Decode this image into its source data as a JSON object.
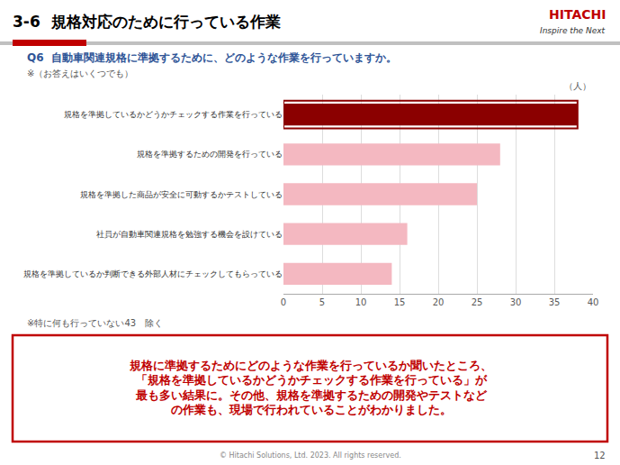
{
  "chart_data": {
    "type": "bar",
    "orientation": "horizontal",
    "title": "3-6  規格対応のために行っている作業",
    "xlabel": "（人）",
    "categories": [
      "規格を準拠しているかどうかチェックする作業を行っている",
      "規格を準拠するための開発を行っている",
      "規格を準拠した商品が安全に可動するかテストしている",
      "社員が自動車関連規格を勉強する機会を設けている",
      "規格を準拠しているか判断できる外部人材にチェックしてもらっている"
    ],
    "values": [
      38,
      28,
      25,
      16,
      14
    ],
    "colors": [
      "#8B0000",
      "#F4B8C1",
      "#F4B8C1",
      "#F4B8C1",
      "#F4B8C1"
    ],
    "xlim": [
      0,
      40
    ],
    "xticks": [
      0,
      5,
      10,
      15,
      20,
      25,
      30,
      35,
      40
    ],
    "grid": true,
    "annotations": [
      "Q6  自動車関連規格に準拠するために、どのような作業を行っていますか。",
      "※（お答えはいくつでも）",
      "※特に何も行っていない43　除く",
      "規格に準拠するためにどのような作業を行っているか聞いたところ、\n「規格を準拠しているかどうかチェックする作業を行っている」が\n最も多い結果に。その他、規格を準拠するための開発やテストなど\nの作業も、現場で行われていることがわかりました。",
      "HITACHI",
      "Inspire the Next",
      "© Hitachi Solutions, Ltd. 2023. All rights reserved.",
      "12"
    ]
  }
}
